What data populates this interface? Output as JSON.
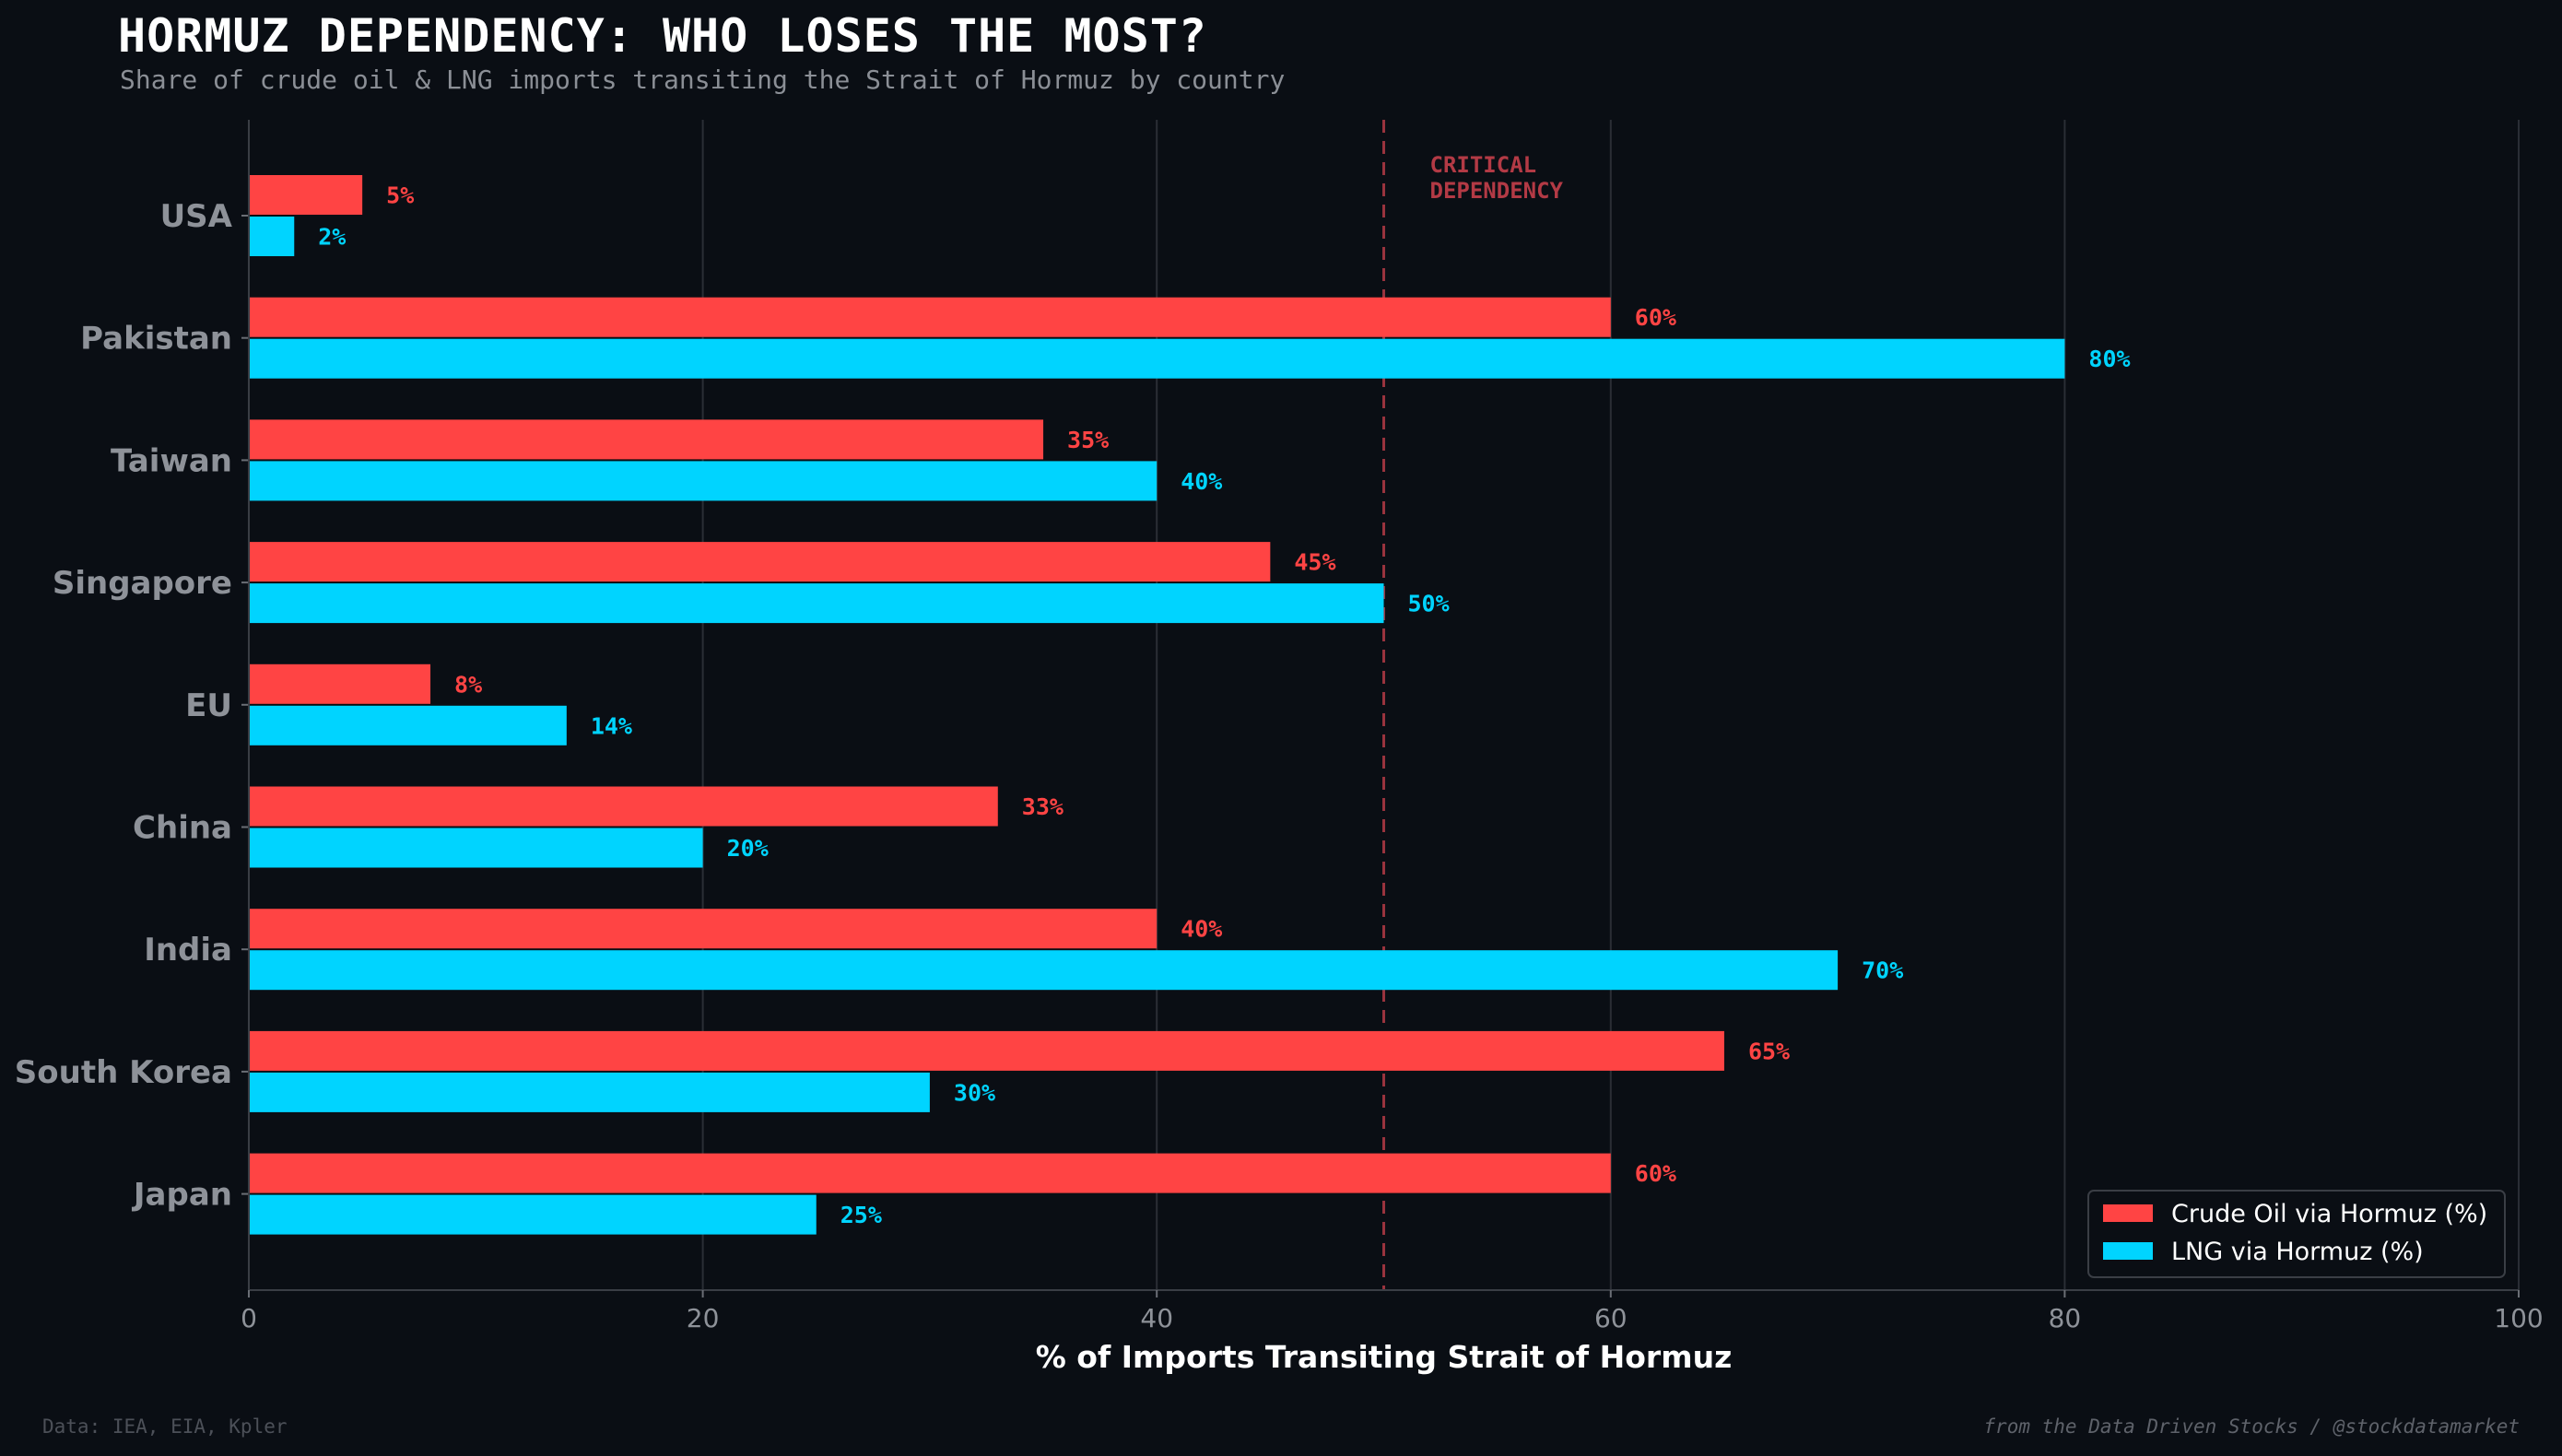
{
  "chart_data": {
    "type": "bar",
    "orientation": "horizontal",
    "title": "HORMUZ DEPENDENCY: WHO LOSES THE MOST?",
    "subtitle": "Share of crude oil & LNG imports transiting the Strait of Hormuz by country",
    "xlabel": "% of Imports Transiting Strait of Hormuz",
    "ylabel": "",
    "xlim": [
      0,
      100
    ],
    "xticks": [
      0,
      20,
      40,
      60,
      80,
      100
    ],
    "categories": [
      "USA",
      "Pakistan",
      "Taiwan",
      "Singapore",
      "EU",
      "China",
      "India",
      "South Korea",
      "Japan"
    ],
    "series": [
      {
        "name": "Crude Oil via Hormuz (%)",
        "color": "#ff4444",
        "values": [
          5,
          60,
          35,
          45,
          8,
          33,
          40,
          65,
          60
        ]
      },
      {
        "name": "LNG via Hormuz (%)",
        "color": "#00d4ff",
        "values": [
          2,
          80,
          40,
          50,
          14,
          20,
          70,
          30,
          25
        ]
      }
    ],
    "value_label_suffix": "%",
    "reference_line": {
      "value": 50,
      "label_line1": "CRITICAL",
      "label_line2": "DEPENDENCY",
      "color": "#b33a45"
    },
    "grid": "vertical",
    "legend_position": "bottom-right"
  },
  "footer": {
    "source": "Data: IEA, EIA, Kpler",
    "credit": "from the Data Driven Stocks / @stockdatamarket"
  },
  "colors": {
    "background": "#0a0e14",
    "grid": "#2a2e35",
    "text_muted": "#8e9299"
  }
}
